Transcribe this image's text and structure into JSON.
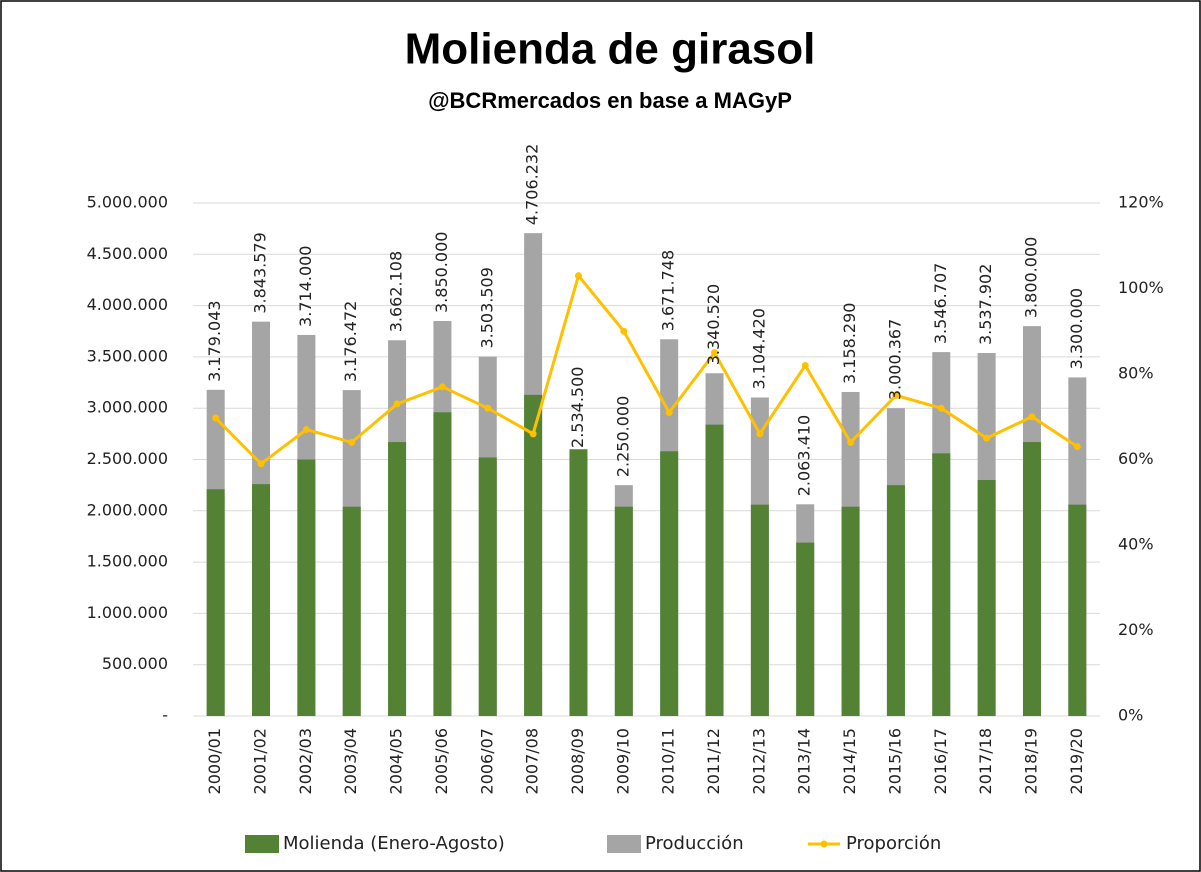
{
  "chart_data": {
    "type": "bar",
    "title": "Molienda de girasol",
    "subtitle": "@BCRmercados en base a MAGyP",
    "categories": [
      "2000/01",
      "2001/02",
      "2002/03",
      "2003/04",
      "2004/05",
      "2005/06",
      "2006/07",
      "2007/08",
      "2008/09",
      "2009/10",
      "2010/11",
      "2011/12",
      "2012/13",
      "2013/14",
      "2014/15",
      "2015/16",
      "2016/17",
      "2017/18",
      "2018/19",
      "2019/20"
    ],
    "series": [
      {
        "name": "Producción",
        "type": "bar",
        "color": "#a5a5a5",
        "values": [
          3179043,
          3843579,
          3714000,
          3176472,
          3662108,
          3850000,
          3503509,
          4706232,
          2534500,
          2250000,
          3671748,
          3340520,
          3104420,
          2063410,
          3158290,
          3000367,
          3546707,
          3537902,
          3800000,
          3300000
        ],
        "value_labels": [
          "3.179.043",
          "3.843.579",
          "3.714.000",
          "3.176.472",
          "3.662.108",
          "3.850.000",
          "3.503.509",
          "4.706.232",
          "2.534.500",
          "2.250.000",
          "3.671.748",
          "3.340.520",
          "3.104.420",
          "2.063.410",
          "3.158.290",
          "3.000.367",
          "3.546.707",
          "3.537.902",
          "3.800.000",
          "3.300.000"
        ]
      },
      {
        "name": "Molienda (Enero-Agosto)",
        "type": "bar",
        "color": "#548235",
        "values": [
          2210000,
          2260000,
          2500000,
          2040000,
          2670000,
          2960000,
          2520000,
          3130000,
          2600000,
          2040000,
          2580000,
          2840000,
          2060000,
          1690000,
          2040000,
          2250000,
          2560000,
          2300000,
          2670000,
          2060000
        ]
      },
      {
        "name": "Proporción",
        "type": "line",
        "axis": "y2",
        "color": "#ffc000",
        "values": [
          69.7,
          59,
          67,
          64,
          73,
          77,
          72,
          66,
          103,
          90,
          71,
          85,
          66,
          82,
          64,
          75,
          72,
          65,
          70,
          63
        ]
      }
    ],
    "legend_order": [
      1,
      0,
      2
    ],
    "legend": "bottom",
    "ylim": [
      0,
      5000000
    ],
    "yticks": [
      {
        "value": 0,
        "label": "-"
      },
      {
        "value": 500000,
        "label": "500.000"
      },
      {
        "value": 1000000,
        "label": "1.000.000"
      },
      {
        "value": 1500000,
        "label": "1.500.000"
      },
      {
        "value": 2000000,
        "label": "2.000.000"
      },
      {
        "value": 2500000,
        "label": "2.500.000"
      },
      {
        "value": 3000000,
        "label": "3.000.000"
      },
      {
        "value": 3500000,
        "label": "3.500.000"
      },
      {
        "value": 4000000,
        "label": "4.000.000"
      },
      {
        "value": 4500000,
        "label": "4.500.000"
      },
      {
        "value": 5000000,
        "label": "5.000.000"
      }
    ],
    "y2lim": [
      0,
      120
    ],
    "y2ticks": [
      {
        "value": 0,
        "label": "0%"
      },
      {
        "value": 20,
        "label": "20%"
      },
      {
        "value": 40,
        "label": "40%"
      },
      {
        "value": 60,
        "label": "60%"
      },
      {
        "value": 80,
        "label": "80%"
      },
      {
        "value": 100,
        "label": "100%"
      },
      {
        "value": 120,
        "label": "120%"
      }
    ],
    "grid": true
  }
}
